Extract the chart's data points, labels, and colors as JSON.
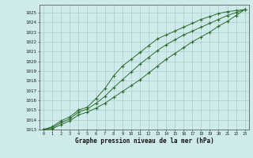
{
  "xlabel": "Graphe pression niveau de la mer (hPa)",
  "bg_color": "#ceeaea",
  "grid_color": "#aacccc",
  "line_color": "#2d6e2d",
  "xlim": [
    -0.5,
    23.5
  ],
  "ylim": [
    1013,
    1025.8
  ],
  "xticks": [
    0,
    1,
    2,
    3,
    4,
    5,
    6,
    7,
    8,
    9,
    10,
    11,
    12,
    13,
    14,
    15,
    16,
    17,
    18,
    19,
    20,
    21,
    22,
    23
  ],
  "yticks": [
    1013,
    1014,
    1015,
    1016,
    1017,
    1018,
    1019,
    1020,
    1021,
    1022,
    1023,
    1024,
    1025
  ],
  "line_upper": [
    1013.0,
    1013.3,
    1013.9,
    1014.3,
    1015.0,
    1015.3,
    1016.2,
    1017.2,
    1018.5,
    1019.5,
    1020.2,
    1020.9,
    1021.6,
    1022.3,
    1022.7,
    1023.1,
    1023.5,
    1023.9,
    1024.3,
    1024.6,
    1024.9,
    1025.1,
    1025.2,
    1025.3
  ],
  "line_mid": [
    1013.0,
    1013.2,
    1013.7,
    1014.1,
    1014.8,
    1015.1,
    1015.7,
    1016.4,
    1017.3,
    1018.1,
    1018.9,
    1019.7,
    1020.4,
    1021.1,
    1021.7,
    1022.2,
    1022.7,
    1023.1,
    1023.5,
    1023.9,
    1024.3,
    1024.7,
    1025.0,
    1025.3
  ],
  "line_lower": [
    1013.0,
    1013.1,
    1013.5,
    1013.9,
    1014.5,
    1014.8,
    1015.2,
    1015.7,
    1016.3,
    1016.9,
    1017.5,
    1018.1,
    1018.8,
    1019.5,
    1020.2,
    1020.8,
    1021.4,
    1022.0,
    1022.5,
    1023.0,
    1023.6,
    1024.1,
    1024.7,
    1025.3
  ]
}
